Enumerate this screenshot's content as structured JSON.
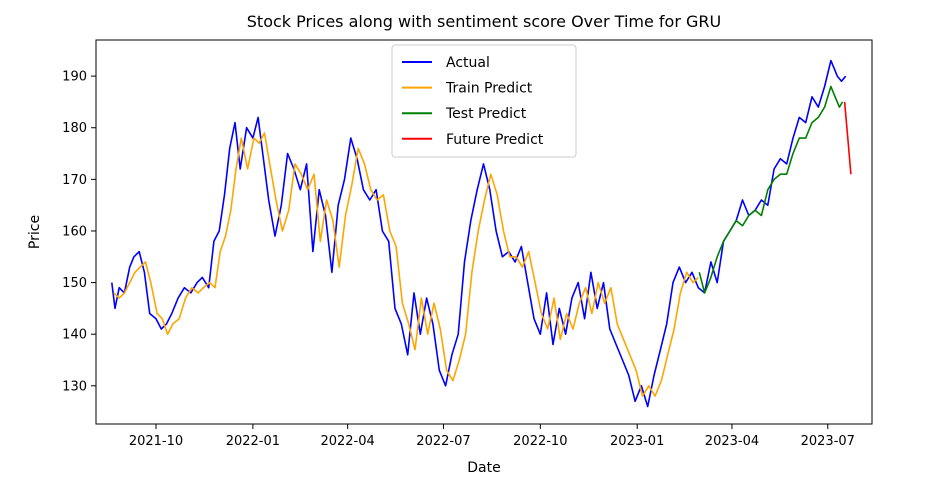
{
  "chart_data": {
    "type": "line",
    "title": "Stock Prices along with sentiment score Over Time for GRU",
    "xlabel": "Date",
    "ylabel": "Price",
    "xlim": [
      "2021-08-05",
      "2023-08-12"
    ],
    "ylim": [
      122.6,
      197.0
    ],
    "x_ticks": [
      {
        "date": "2021-10-01",
        "label": "2021-10"
      },
      {
        "date": "2022-01-01",
        "label": "2022-01"
      },
      {
        "date": "2022-04-01",
        "label": "2022-04"
      },
      {
        "date": "2022-07-01",
        "label": "2022-07"
      },
      {
        "date": "2022-10-01",
        "label": "2022-10"
      },
      {
        "date": "2023-01-01",
        "label": "2023-01"
      },
      {
        "date": "2023-04-01",
        "label": "2023-04"
      },
      {
        "date": "2023-07-01",
        "label": "2023-07"
      }
    ],
    "y_ticks": [
      130,
      140,
      150,
      160,
      170,
      180,
      190
    ],
    "grid": false,
    "legend_position": "top-center",
    "series": [
      {
        "name": "Actual",
        "color": "#0000ff",
        "x": [
          "2021-08-20",
          "2021-08-23",
          "2021-08-27",
          "2021-09-01",
          "2021-09-06",
          "2021-09-10",
          "2021-09-15",
          "2021-09-20",
          "2021-09-25",
          "2021-10-01",
          "2021-10-06",
          "2021-10-11",
          "2021-10-16",
          "2021-10-22",
          "2021-10-28",
          "2021-11-03",
          "2021-11-09",
          "2021-11-14",
          "2021-11-20",
          "2021-11-25",
          "2021-11-30",
          "2021-12-05",
          "2021-12-10",
          "2021-12-15",
          "2021-12-20",
          "2021-12-26",
          "2022-01-01",
          "2022-01-06",
          "2022-01-11",
          "2022-01-16",
          "2022-01-22",
          "2022-01-28",
          "2022-02-03",
          "2022-02-09",
          "2022-02-15",
          "2022-02-21",
          "2022-02-27",
          "2022-03-05",
          "2022-03-11",
          "2022-03-17",
          "2022-03-23",
          "2022-03-29",
          "2022-04-04",
          "2022-04-10",
          "2022-04-16",
          "2022-04-22",
          "2022-04-28",
          "2022-05-04",
          "2022-05-10",
          "2022-05-16",
          "2022-05-22",
          "2022-05-28",
          "2022-06-03",
          "2022-06-09",
          "2022-06-15",
          "2022-06-21",
          "2022-06-27",
          "2022-07-03",
          "2022-07-09",
          "2022-07-15",
          "2022-07-21",
          "2022-07-27",
          "2022-08-02",
          "2022-08-08",
          "2022-08-14",
          "2022-08-20",
          "2022-08-26",
          "2022-09-01",
          "2022-09-07",
          "2022-09-13",
          "2022-09-19",
          "2022-09-25",
          "2022-10-01",
          "2022-10-07",
          "2022-10-13",
          "2022-10-19",
          "2022-10-25",
          "2022-10-31",
          "2022-11-06",
          "2022-11-12",
          "2022-11-18",
          "2022-11-24",
          "2022-11-30",
          "2022-12-06",
          "2022-12-12",
          "2022-12-18",
          "2022-12-24",
          "2022-12-30",
          "2023-01-05",
          "2023-01-11",
          "2023-01-17",
          "2023-01-23",
          "2023-01-29",
          "2023-02-04",
          "2023-02-10",
          "2023-02-16",
          "2023-02-22",
          "2023-02-28",
          "2023-03-06",
          "2023-03-12",
          "2023-03-18",
          "2023-03-24",
          "2023-03-30",
          "2023-04-05",
          "2023-04-11",
          "2023-04-17",
          "2023-04-23",
          "2023-04-29",
          "2023-05-05",
          "2023-05-11",
          "2023-05-17",
          "2023-05-23",
          "2023-05-29",
          "2023-06-04",
          "2023-06-10",
          "2023-06-16",
          "2023-06-22",
          "2023-06-28",
          "2023-07-04",
          "2023-07-10",
          "2023-07-14",
          "2023-07-18"
        ],
        "values": [
          150,
          145,
          149,
          148,
          153,
          155,
          156,
          152,
          144,
          143,
          141,
          142,
          144,
          147,
          149,
          148,
          150,
          151,
          149,
          158,
          160,
          167,
          176,
          181,
          172,
          180,
          178,
          182,
          174,
          166,
          159,
          165,
          175,
          172,
          168,
          173,
          156,
          168,
          163,
          152,
          165,
          170,
          178,
          174,
          168,
          166,
          168,
          160,
          158,
          145,
          142,
          136,
          148,
          140,
          147,
          142,
          133,
          130,
          136,
          140,
          154,
          162,
          168,
          173,
          168,
          160,
          155,
          156,
          154,
          157,
          150,
          143,
          140,
          148,
          138,
          145,
          140,
          147,
          150,
          143,
          152,
          145,
          150,
          141,
          138,
          135,
          132,
          127,
          130,
          126,
          132,
          137,
          142,
          150,
          153,
          150,
          152,
          149,
          148,
          154,
          150,
          158,
          160,
          162,
          166,
          163,
          164,
          166,
          165,
          172,
          174,
          173,
          178,
          182,
          181,
          186,
          184,
          188,
          193,
          190,
          189,
          190
        ]
      },
      {
        "name": "Train Predict",
        "color": "#ffa500",
        "x": [
          "2021-08-22",
          "2021-08-27",
          "2021-09-01",
          "2021-09-06",
          "2021-09-11",
          "2021-09-16",
          "2021-09-21",
          "2021-09-26",
          "2021-10-02",
          "2021-10-07",
          "2021-10-12",
          "2021-10-17",
          "2021-10-23",
          "2021-10-29",
          "2021-11-04",
          "2021-11-10",
          "2021-11-15",
          "2021-11-21",
          "2021-11-26",
          "2021-12-01",
          "2021-12-06",
          "2021-12-11",
          "2021-12-16",
          "2021-12-21",
          "2021-12-27",
          "2022-01-02",
          "2022-01-07",
          "2022-01-12",
          "2022-01-17",
          "2022-01-23",
          "2022-01-29",
          "2022-02-04",
          "2022-02-10",
          "2022-02-16",
          "2022-02-22",
          "2022-02-28",
          "2022-03-06",
          "2022-03-12",
          "2022-03-18",
          "2022-03-24",
          "2022-03-30",
          "2022-04-05",
          "2022-04-11",
          "2022-04-17",
          "2022-04-23",
          "2022-04-29",
          "2022-05-05",
          "2022-05-11",
          "2022-05-17",
          "2022-05-23",
          "2022-05-29",
          "2022-06-04",
          "2022-06-10",
          "2022-06-16",
          "2022-06-22",
          "2022-06-28",
          "2022-07-04",
          "2022-07-10",
          "2022-07-16",
          "2022-07-22",
          "2022-07-28",
          "2022-08-03",
          "2022-08-09",
          "2022-08-15",
          "2022-08-21",
          "2022-08-27",
          "2022-09-02",
          "2022-09-08",
          "2022-09-14",
          "2022-09-20",
          "2022-09-26",
          "2022-10-02",
          "2022-10-08",
          "2022-10-14",
          "2022-10-20",
          "2022-10-26",
          "2022-11-01",
          "2022-11-07",
          "2022-11-13",
          "2022-11-19",
          "2022-11-25",
          "2022-12-01",
          "2022-12-07",
          "2022-12-13",
          "2022-12-19",
          "2022-12-25",
          "2022-12-31",
          "2023-01-06",
          "2023-01-12",
          "2023-01-18",
          "2023-01-24",
          "2023-01-30",
          "2023-02-05",
          "2023-02-11",
          "2023-02-17",
          "2023-02-23",
          "2023-02-28"
        ],
        "values": [
          148,
          147,
          148,
          150,
          152,
          153,
          154,
          150,
          144,
          143,
          140,
          142,
          143,
          147,
          149,
          148,
          149,
          150,
          149,
          156,
          159,
          164,
          172,
          178,
          172,
          178,
          177,
          179,
          173,
          166,
          160,
          164,
          173,
          171,
          168,
          171,
          158,
          166,
          162,
          153,
          163,
          169,
          176,
          173,
          168,
          166,
          167,
          160,
          157,
          146,
          142,
          137,
          147,
          140,
          146,
          141,
          133,
          131,
          135,
          140,
          152,
          160,
          166,
          171,
          167,
          160,
          155,
          155,
          153,
          156,
          150,
          144,
          141,
          147,
          139,
          144,
          141,
          146,
          149,
          144,
          150,
          146,
          149,
          142,
          139,
          136,
          133,
          128,
          130,
          128,
          131,
          136,
          141,
          148,
          152,
          150,
          151
        ]
      },
      {
        "name": "Test Predict",
        "color": "#008000",
        "x": [
          "2023-03-01",
          "2023-03-06",
          "2023-03-12",
          "2023-03-18",
          "2023-03-24",
          "2023-03-30",
          "2023-04-05",
          "2023-04-11",
          "2023-04-17",
          "2023-04-23",
          "2023-04-29",
          "2023-05-05",
          "2023-05-11",
          "2023-05-17",
          "2023-05-23",
          "2023-05-29",
          "2023-06-04",
          "2023-06-10",
          "2023-06-16",
          "2023-06-22",
          "2023-06-28",
          "2023-07-04",
          "2023-07-08",
          "2023-07-12",
          "2023-07-15"
        ],
        "values": [
          152,
          148,
          151,
          155,
          158,
          160,
          162,
          161,
          163,
          164,
          163,
          168,
          170,
          171,
          171,
          175,
          178,
          178,
          181,
          182,
          184,
          188,
          186,
          184,
          185
        ]
      },
      {
        "name": "Future Predict",
        "color": "#ff0000",
        "x": [
          "2023-07-17",
          "2023-07-20",
          "2023-07-23"
        ],
        "values": [
          185,
          178,
          171
        ]
      }
    ]
  }
}
